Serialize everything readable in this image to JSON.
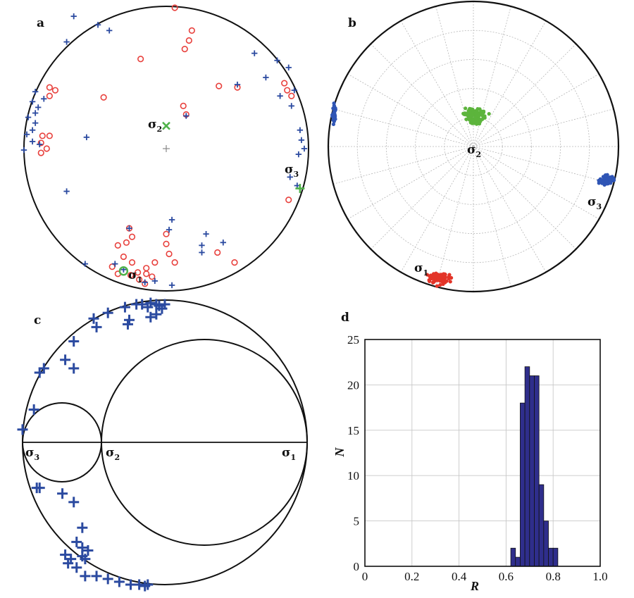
{
  "chart_data": [
    {
      "id": "a",
      "type": "scatter",
      "panel_label": "a",
      "description": "equal-area stereonet, lower hemisphere",
      "labels": {
        "sigma1": "σ",
        "sigma1_sub": "1",
        "sigma2": "σ",
        "sigma2_sub": "2",
        "sigma3": "σ",
        "sigma3_sub": "3"
      },
      "series": [
        {
          "marker": "circle",
          "color": "#e8413d",
          "points": [
            [
              0.06,
              0.99
            ],
            [
              0.18,
              0.83
            ],
            [
              0.16,
              0.76
            ],
            [
              0.13,
              0.7
            ],
            [
              -0.18,
              0.63
            ],
            [
              -0.82,
              0.43
            ],
            [
              -0.78,
              0.41
            ],
            [
              -0.82,
              0.37
            ],
            [
              -0.44,
              0.36
            ],
            [
              0.37,
              0.44
            ],
            [
              0.5,
              0.43
            ],
            [
              0.83,
              0.46
            ],
            [
              0.85,
              0.41
            ],
            [
              0.88,
              0.37
            ],
            [
              -0.87,
              0.09
            ],
            [
              -0.82,
              0.09
            ],
            [
              -0.88,
              0.04
            ],
            [
              -0.84,
              0.0
            ],
            [
              -0.88,
              -0.03
            ],
            [
              0.12,
              0.3
            ],
            [
              0.14,
              0.24
            ],
            [
              0.86,
              -0.36
            ],
            [
              -0.26,
              -0.56
            ],
            [
              -0.24,
              -0.62
            ],
            [
              -0.28,
              -0.66
            ],
            [
              -0.34,
              -0.68
            ],
            [
              -0.3,
              -0.76
            ],
            [
              0.0,
              -0.6
            ],
            [
              0.0,
              -0.67
            ],
            [
              0.02,
              -0.74
            ],
            [
              0.06,
              -0.8
            ],
            [
              -0.08,
              -0.8
            ],
            [
              -0.14,
              -0.84
            ],
            [
              -0.24,
              -0.8
            ],
            [
              -0.38,
              -0.83
            ],
            [
              -0.34,
              -0.88
            ],
            [
              -0.25,
              -0.89
            ],
            [
              -0.2,
              -0.87
            ],
            [
              -0.14,
              -0.88
            ],
            [
              -0.1,
              -0.9
            ],
            [
              -0.19,
              -0.92
            ],
            [
              -0.15,
              -0.95
            ],
            [
              0.36,
              -0.73
            ],
            [
              0.48,
              -0.8
            ]
          ]
        },
        {
          "marker": "plus",
          "color": "#2b4aa0",
          "points": [
            [
              -0.65,
              0.93
            ],
            [
              -0.48,
              0.87
            ],
            [
              -0.4,
              0.83
            ],
            [
              -0.7,
              0.75
            ],
            [
              0.62,
              0.67
            ],
            [
              0.78,
              0.62
            ],
            [
              0.86,
              0.57
            ],
            [
              0.7,
              0.5
            ],
            [
              0.5,
              0.45
            ],
            [
              0.8,
              0.37
            ],
            [
              0.9,
              0.41
            ],
            [
              0.88,
              0.3
            ],
            [
              0.14,
              0.23
            ],
            [
              -0.92,
              0.4
            ],
            [
              -0.94,
              0.33
            ],
            [
              -0.86,
              0.35
            ],
            [
              -0.9,
              0.29
            ],
            [
              -0.92,
              0.25
            ],
            [
              -0.97,
              0.22
            ],
            [
              -0.92,
              0.18
            ],
            [
              -0.94,
              0.13
            ],
            [
              -0.98,
              0.1
            ],
            [
              -0.94,
              0.05
            ],
            [
              -0.89,
              0.03
            ],
            [
              -1.0,
              -0.01
            ],
            [
              -0.56,
              0.08
            ],
            [
              0.94,
              0.13
            ],
            [
              0.95,
              0.06
            ],
            [
              0.97,
              0.0
            ],
            [
              0.93,
              -0.04
            ],
            [
              0.87,
              -0.2
            ],
            [
              0.92,
              -0.26
            ],
            [
              -0.7,
              -0.3
            ],
            [
              0.04,
              -0.5
            ],
            [
              0.02,
              -0.57
            ],
            [
              0.28,
              -0.6
            ],
            [
              0.4,
              -0.66
            ],
            [
              0.25,
              -0.68
            ],
            [
              -0.26,
              -0.56
            ],
            [
              0.25,
              -0.73
            ],
            [
              -0.57,
              -0.81
            ],
            [
              -0.36,
              -0.81
            ],
            [
              -0.3,
              -0.85
            ],
            [
              -0.15,
              -0.94
            ],
            [
              -0.08,
              -0.93
            ],
            [
              0.04,
              -0.96
            ]
          ]
        }
      ],
      "principal_axes": [
        {
          "name": "σ1",
          "marker": "circle",
          "color": "#4fb24a",
          "point": [
            -0.3,
            -0.86
          ]
        },
        {
          "name": "σ2",
          "marker": "cross",
          "color": "#4fb24a",
          "point": [
            0.0,
            0.16
          ]
        },
        {
          "name": "σ3",
          "marker": "plus",
          "color": "#4fb24a",
          "point": [
            0.94,
            -0.28
          ]
        },
        {
          "name": "center",
          "marker": "plus",
          "color": "#888888",
          "point": [
            0.0,
            0.0
          ]
        }
      ]
    },
    {
      "id": "b",
      "type": "scatter",
      "panel_label": "b",
      "description": "polar stereonet with bootstrap clusters",
      "labels": {
        "sigma1": "σ",
        "sigma1_sub": "1",
        "sigma2": "σ",
        "sigma2_sub": "2",
        "sigma3": "σ",
        "sigma3_sub": "3"
      },
      "clusters": [
        {
          "name": "σ1",
          "color": "#e33428",
          "center": [
            -0.24,
            -0.91
          ],
          "spread": [
            0.06,
            0.035
          ],
          "count": 90
        },
        {
          "name": "σ2",
          "color": "#5cb43c",
          "center": [
            0.01,
            0.21
          ],
          "spread": [
            0.07,
            0.045
          ],
          "count": 90
        },
        {
          "name": "σ3",
          "color": "#2f55b5",
          "center": [
            0.92,
            -0.23
          ],
          "spread": [
            0.045,
            0.03
          ],
          "count": 90
        },
        {
          "name": "edge",
          "color": "#2f55b5",
          "center": [
            -0.96,
            0.22
          ],
          "spread": [
            0.012,
            0.07
          ],
          "count": 30
        }
      ],
      "grid": {
        "rings": 5,
        "spokes": 24
      }
    },
    {
      "id": "c",
      "type": "scatter",
      "panel_label": "c",
      "description": "Mohr circle diagram",
      "axis_labels": {
        "sigma3": "σ",
        "sigma3_sub": "3",
        "sigma2": "σ",
        "sigma2_sub": "2",
        "sigma1": "σ",
        "sigma1_sub": "1"
      },
      "stress": {
        "sigma3": 0.0,
        "sigma2": 0.273,
        "sigma1": 1.0
      },
      "series": [
        {
          "marker": "plus",
          "color": "#2b4aa0",
          "points": [
            [
              0.0,
              0.045
            ],
            [
              0.04,
              0.115
            ],
            [
              0.06,
              0.245
            ],
            [
              0.075,
              0.26
            ],
            [
              0.18,
              0.355
            ],
            [
              0.26,
              0.405
            ],
            [
              0.25,
              0.435
            ],
            [
              0.37,
              0.415
            ],
            [
              0.3,
              0.455
            ],
            [
              0.375,
              0.43
            ],
            [
              0.36,
              0.475
            ],
            [
              0.4,
              0.485
            ],
            [
              0.42,
              0.485
            ],
            [
              0.44,
              0.475
            ],
            [
              0.45,
              0.49
            ],
            [
              0.47,
              0.485
            ],
            [
              0.48,
              0.48
            ],
            [
              0.45,
              0.44
            ],
            [
              0.47,
              0.45
            ],
            [
              0.5,
              0.485
            ],
            [
              0.49,
              0.47
            ],
            [
              0.15,
              0.29
            ],
            [
              0.18,
              0.26
            ],
            [
              0.05,
              -0.16
            ],
            [
              0.06,
              -0.16
            ],
            [
              0.14,
              -0.18
            ],
            [
              0.18,
              -0.21
            ],
            [
              0.21,
              -0.3
            ],
            [
              0.19,
              -0.35
            ],
            [
              0.21,
              -0.37
            ],
            [
              0.21,
              -0.4
            ],
            [
              0.23,
              -0.38
            ],
            [
              0.22,
              -0.41
            ],
            [
              0.15,
              -0.395
            ],
            [
              0.17,
              -0.41
            ],
            [
              0.16,
              -0.425
            ],
            [
              0.19,
              -0.44
            ],
            [
              0.22,
              -0.47
            ],
            [
              0.26,
              -0.47
            ],
            [
              0.3,
              -0.48
            ],
            [
              0.34,
              -0.49
            ],
            [
              0.38,
              -0.5
            ],
            [
              0.41,
              -0.5
            ],
            [
              0.43,
              -0.505
            ],
            [
              0.44,
              -0.5
            ]
          ]
        }
      ]
    },
    {
      "id": "d",
      "type": "bar",
      "panel_label": "d",
      "xlabel": "R",
      "ylabel": "N",
      "xlim": [
        0,
        1.0
      ],
      "ylim": [
        0,
        25
      ],
      "xticks": [
        "0",
        "0.2",
        "0.4",
        "0.6",
        "0.8",
        "1.0"
      ],
      "yticks": [
        "0",
        "5",
        "10",
        "15",
        "20",
        "25"
      ],
      "grid": true,
      "bar_color": "#2f2e8c",
      "bins": [
        {
          "x0": 0.62,
          "x1": 0.64,
          "value": 2
        },
        {
          "x0": 0.64,
          "x1": 0.66,
          "value": 1
        },
        {
          "x0": 0.66,
          "x1": 0.68,
          "value": 18
        },
        {
          "x0": 0.68,
          "x1": 0.7,
          "value": 22
        },
        {
          "x0": 0.7,
          "x1": 0.72,
          "value": 21
        },
        {
          "x0": 0.72,
          "x1": 0.74,
          "value": 21
        },
        {
          "x0": 0.74,
          "x1": 0.76,
          "value": 9
        },
        {
          "x0": 0.76,
          "x1": 0.78,
          "value": 5
        },
        {
          "x0": 0.78,
          "x1": 0.8,
          "value": 2
        },
        {
          "x0": 0.8,
          "x1": 0.82,
          "value": 2
        }
      ]
    }
  ]
}
